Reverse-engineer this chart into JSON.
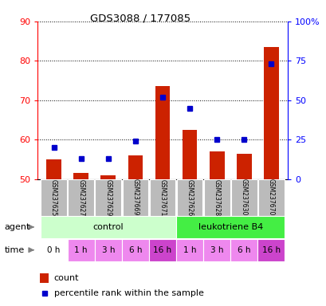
{
  "title": "GDS3088 / 177085",
  "samples": [
    "GSM237625",
    "GSM237627",
    "GSM237629",
    "GSM237669",
    "GSM237671",
    "GSM237626",
    "GSM237628",
    "GSM237630",
    "GSM237670"
  ],
  "count_values": [
    55.0,
    51.5,
    51.0,
    56.0,
    73.5,
    62.5,
    57.0,
    56.5,
    83.5
  ],
  "percentile_values": [
    20,
    13,
    13,
    24,
    52,
    45,
    25,
    25,
    73
  ],
  "ylim_left": [
    50,
    90
  ],
  "ylim_right": [
    0,
    100
  ],
  "yticks_left": [
    50,
    60,
    70,
    80,
    90
  ],
  "yticks_right": [
    0,
    25,
    50,
    75,
    100
  ],
  "ytick_right_labels": [
    "0",
    "25",
    "50",
    "75",
    "100%"
  ],
  "bar_color": "#cc2200",
  "marker_color": "#0000cc",
  "bar_bottom": 50,
  "agent_groups": [
    {
      "label": "control",
      "start": 0,
      "end": 5,
      "color": "#ccffcc"
    },
    {
      "label": "leukotriene B4",
      "start": 5,
      "end": 9,
      "color": "#44ee44"
    }
  ],
  "time_labels": [
    "0 h",
    "1 h",
    "3 h",
    "6 h",
    "16 h",
    "1 h",
    "3 h",
    "6 h",
    "16 h"
  ],
  "time_colors": [
    "#ffffff",
    "#ee88ee",
    "#ee88ee",
    "#ee88ee",
    "#cc44cc",
    "#ee88ee",
    "#ee88ee",
    "#ee88ee",
    "#cc44cc"
  ],
  "label_agent": "agent",
  "label_time": "time",
  "legend_count": "count",
  "legend_percentile": "percentile rank within the sample",
  "sample_box_color": "#bbbbbb",
  "plot_bg": "#ffffff"
}
